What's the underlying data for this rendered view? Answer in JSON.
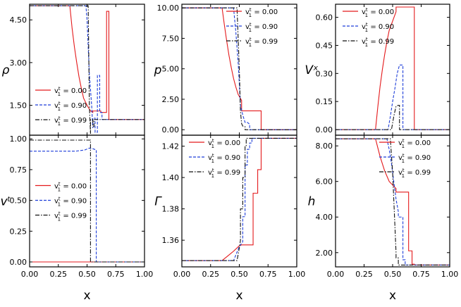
{
  "chart_data": [
    {
      "id": "rho",
      "type": "line",
      "ylabel": "ρ",
      "xlabel": "",
      "xlim": [
        0,
        1
      ],
      "ylim": [
        0.45,
        5.05
      ],
      "xticks": [
        0,
        0.25,
        0.5,
        0.75,
        1.0
      ],
      "yticks": [
        1.5,
        3.0,
        4.5
      ],
      "yticklabels": [
        "1.50",
        "3.00",
        "4.50"
      ],
      "legend": "bottom-left",
      "series": [
        {
          "name": "0.00",
          "color": "#e41a1c",
          "dash": "solid",
          "x": [
            0,
            0.35,
            0.37,
            0.39,
            0.41,
            0.43,
            0.45,
            0.47,
            0.5,
            0.53,
            0.55,
            0.55,
            0.62,
            0.62,
            0.67,
            0.67,
            0.69,
            0.69,
            1.0
          ],
          "y": [
            5.0,
            5.0,
            4.2,
            3.55,
            3.0,
            2.5,
            2.1,
            1.75,
            1.5,
            1.3,
            1.25,
            1.3,
            1.3,
            1.25,
            1.25,
            4.8,
            4.8,
            1.0,
            1.0
          ]
        },
        {
          "name": "0.90",
          "color": "#1f3fd9",
          "dash": "dashed",
          "x": [
            0,
            0.49,
            0.5,
            0.52,
            0.54,
            0.55,
            0.55,
            0.57,
            0.57,
            0.59,
            0.59,
            0.61,
            0.61,
            0.63,
            0.63,
            1.0
          ],
          "y": [
            5.0,
            5.0,
            4.5,
            2.6,
            1.5,
            0.7,
            1.05,
            1.05,
            0.55,
            0.55,
            2.55,
            2.55,
            1.25,
            1.25,
            1.0,
            1.0
          ]
        },
        {
          "name": "0.99",
          "color": "#111111",
          "dash": "dashdot",
          "x": [
            0,
            0.51,
            0.52,
            0.53,
            0.53,
            0.55,
            0.55,
            0.56,
            0.56,
            1.0
          ],
          "y": [
            5.0,
            5.0,
            1.5,
            0.5,
            1.0,
            1.0,
            0.75,
            0.75,
            1.0,
            1.0
          ]
        }
      ]
    },
    {
      "id": "p",
      "type": "line",
      "ylabel": "p",
      "xlabel": "",
      "xlim": [
        0,
        1
      ],
      "ylim": [
        -0.45,
        10.3
      ],
      "xticks": [
        0,
        0.25,
        0.5,
        0.75,
        1.0
      ],
      "yticks": [
        0,
        2.5,
        5.0,
        7.5,
        10.0
      ],
      "yticklabels": [
        "0.00",
        "2.50",
        "5.00",
        "7.50",
        "10.00"
      ],
      "legend": "top-right",
      "series": [
        {
          "name": "0.00",
          "color": "#e41a1c",
          "dash": "solid",
          "x": [
            0,
            0.35,
            0.37,
            0.39,
            0.41,
            0.43,
            0.45,
            0.47,
            0.49,
            0.52,
            0.52,
            0.69,
            0.69,
            1.0
          ],
          "y": [
            10.0,
            10.0,
            8.6,
            7.3,
            6.1,
            5.1,
            4.2,
            3.5,
            2.9,
            2.4,
            1.55,
            1.55,
            0.0,
            0.0
          ]
        },
        {
          "name": "0.90",
          "color": "#1f3fd9",
          "dash": "dashed",
          "x": [
            0,
            0.45,
            0.47,
            0.49,
            0.51,
            0.53,
            0.55,
            0.57,
            0.59,
            0.59,
            1.0
          ],
          "y": [
            10.0,
            10.0,
            8.0,
            5.5,
            2.0,
            1.2,
            0.6,
            0.6,
            0.45,
            0.0,
            0.0
          ]
        },
        {
          "name": "0.99",
          "color": "#111111",
          "dash": "dashdot",
          "x": [
            0,
            0.48,
            0.5,
            0.51,
            0.52,
            0.53,
            0.54,
            0.55,
            0.55,
            1.0
          ],
          "y": [
            10.0,
            10.0,
            5.0,
            1.5,
            0.5,
            0.3,
            0.25,
            0.25,
            0.0,
            0.0
          ]
        }
      ]
    },
    {
      "id": "vx",
      "type": "line",
      "ylabel": "Vˣ",
      "xlabel": "",
      "xlim": [
        0,
        1
      ],
      "ylim": [
        -0.03,
        0.67
      ],
      "xticks": [
        0,
        0.25,
        0.5,
        0.75,
        1.0
      ],
      "yticks": [
        0,
        0.15,
        0.3,
        0.45,
        0.6
      ],
      "yticklabels": [
        "0.00",
        "0.15",
        "0.30",
        "0.45",
        "0.60"
      ],
      "legend": "top-left",
      "series": [
        {
          "name": "0.00",
          "color": "#e41a1c",
          "dash": "solid",
          "x": [
            0,
            0.35,
            0.37,
            0.39,
            0.41,
            0.43,
            0.45,
            0.47,
            0.5,
            0.53,
            0.53,
            0.69,
            0.69,
            1.0
          ],
          "y": [
            0.0,
            0.0,
            0.12,
            0.23,
            0.32,
            0.4,
            0.47,
            0.53,
            0.58,
            0.63,
            0.655,
            0.655,
            0.0,
            0.0
          ]
        },
        {
          "name": "0.90",
          "color": "#1f3fd9",
          "dash": "dashed",
          "x": [
            0,
            0.46,
            0.48,
            0.5,
            0.52,
            0.54,
            0.56,
            0.59,
            0.59,
            1.0
          ],
          "y": [
            0.0,
            0.0,
            0.07,
            0.15,
            0.22,
            0.3,
            0.345,
            0.345,
            0.0,
            0.0
          ]
        },
        {
          "name": "0.99",
          "color": "#111111",
          "dash": "dashdot",
          "x": [
            0,
            0.49,
            0.51,
            0.53,
            0.55,
            0.56,
            0.56,
            1.0
          ],
          "y": [
            0.0,
            0.0,
            0.07,
            0.125,
            0.13,
            0.13,
            0.0,
            0.0
          ]
        }
      ]
    },
    {
      "id": "vt",
      "type": "line",
      "ylabel": "vᵗ",
      "xlabel": "x",
      "xlim": [
        0,
        1
      ],
      "ylim": [
        -0.04,
        1.03
      ],
      "xticks": [
        0,
        0.25,
        0.5,
        0.75,
        1.0
      ],
      "xticklabels": [
        "0.00",
        "0.25",
        "0.50",
        "0.75",
        "1.00"
      ],
      "yticks": [
        0,
        0.25,
        0.5,
        0.75,
        1.0
      ],
      "yticklabels": [
        "0.00",
        "0.25",
        "0.50",
        "0.75",
        "1.00"
      ],
      "legend": "center-left",
      "series": [
        {
          "name": "0.00",
          "color": "#e41a1c",
          "dash": "solid",
          "x": [
            0,
            1.0
          ],
          "y": [
            0.0,
            0.0
          ]
        },
        {
          "name": "0.90",
          "color": "#1f3fd9",
          "dash": "dashed",
          "x": [
            0,
            0.4,
            0.48,
            0.52,
            0.55,
            0.58,
            0.58,
            1.0
          ],
          "y": [
            0.9,
            0.9,
            0.91,
            0.925,
            0.92,
            0.91,
            0.0,
            0.0
          ]
        },
        {
          "name": "0.99",
          "color": "#111111",
          "dash": "dashdot",
          "x": [
            0,
            0.53,
            0.53,
            1.0
          ],
          "y": [
            0.99,
            0.99,
            0.0,
            0.0
          ]
        }
      ]
    },
    {
      "id": "gamma",
      "type": "line",
      "ylabel": "Γ",
      "xlabel": "x",
      "xlim": [
        0,
        1
      ],
      "ylim": [
        1.343,
        1.427
      ],
      "xticks": [
        0,
        0.25,
        0.5,
        0.75,
        1.0
      ],
      "xticklabels": [
        "0.00",
        "0.25",
        "0.50",
        "0.75",
        "1.00"
      ],
      "yticks": [
        1.36,
        1.38,
        1.4,
        1.42
      ],
      "yticklabels": [
        "1.36",
        "1.38",
        "1.40",
        "1.42"
      ],
      "legend": "top-left",
      "series": [
        {
          "name": "0.00",
          "color": "#e41a1c",
          "dash": "solid",
          "x": [
            0,
            0.35,
            0.4,
            0.45,
            0.5,
            0.52,
            0.52,
            0.62,
            0.62,
            0.66,
            0.66,
            0.69,
            0.69,
            1.0
          ],
          "y": [
            1.347,
            1.347,
            1.35,
            1.353,
            1.3565,
            1.357,
            1.357,
            1.357,
            1.39,
            1.39,
            1.405,
            1.405,
            1.425,
            1.425
          ]
        },
        {
          "name": "0.90",
          "color": "#1f3fd9",
          "dash": "dashed",
          "x": [
            0,
            0.45,
            0.5,
            0.53,
            0.53,
            0.55,
            0.55,
            0.57,
            0.57,
            0.59,
            0.59,
            0.61,
            0.61,
            1.0
          ],
          "y": [
            1.347,
            1.347,
            1.356,
            1.359,
            1.375,
            1.375,
            1.408,
            1.408,
            1.418,
            1.418,
            1.422,
            1.422,
            1.425,
            1.425
          ]
        },
        {
          "name": "0.99",
          "color": "#111111",
          "dash": "dashdot",
          "x": [
            0,
            0.48,
            0.5,
            0.51,
            0.51,
            0.53,
            0.53,
            0.55,
            0.55,
            0.56,
            0.56,
            1.0
          ],
          "y": [
            1.347,
            1.347,
            1.355,
            1.36,
            1.38,
            1.38,
            1.4,
            1.4,
            1.42,
            1.42,
            1.425,
            1.425
          ]
        }
      ]
    },
    {
      "id": "h",
      "type": "line",
      "ylabel": "h",
      "xlabel": "x",
      "xlim": [
        0,
        1
      ],
      "ylim": [
        1.2,
        8.6
      ],
      "xticks": [
        0,
        0.25,
        0.5,
        0.75,
        1.0
      ],
      "xticklabels": [
        "0.00",
        "0.25",
        "0.50",
        "0.75",
        "1.00"
      ],
      "yticks": [
        2.0,
        4.0,
        6.0,
        8.0
      ],
      "yticklabels": [
        "2.00",
        "4.00",
        "6.00",
        "8.00"
      ],
      "legend": "top-right",
      "series": [
        {
          "name": "0.00",
          "color": "#e41a1c",
          "dash": "solid",
          "x": [
            0,
            0.35,
            0.37,
            0.39,
            0.41,
            0.43,
            0.45,
            0.47,
            0.5,
            0.53,
            0.53,
            0.64,
            0.64,
            0.67,
            0.67,
            0.69,
            0.69,
            1.0
          ],
          "y": [
            8.4,
            8.4,
            7.9,
            7.4,
            7.0,
            6.6,
            6.3,
            6.0,
            5.8,
            5.6,
            5.4,
            5.4,
            2.1,
            2.1,
            1.35,
            1.35,
            1.3,
            1.3
          ]
        },
        {
          "name": "0.90",
          "color": "#1f3fd9",
          "dash": "dashed",
          "x": [
            0,
            0.45,
            0.47,
            0.49,
            0.51,
            0.53,
            0.55,
            0.55,
            0.59,
            0.59,
            0.61,
            0.61,
            1.0
          ],
          "y": [
            8.4,
            8.4,
            7.8,
            7.0,
            6.0,
            5.0,
            4.3,
            4.0,
            4.0,
            1.6,
            1.6,
            1.3,
            1.3
          ]
        },
        {
          "name": "0.99",
          "color": "#111111",
          "dash": "dashdot",
          "x": [
            0,
            0.48,
            0.5,
            0.52,
            0.53,
            0.53,
            0.55,
            0.55,
            1.0
          ],
          "y": [
            8.4,
            8.4,
            6.5,
            3.5,
            2.0,
            1.7,
            1.7,
            1.3,
            1.3
          ]
        }
      ]
    }
  ],
  "legend_prefix": "v",
  "legend_sup": "t",
  "legend_sub": "1"
}
